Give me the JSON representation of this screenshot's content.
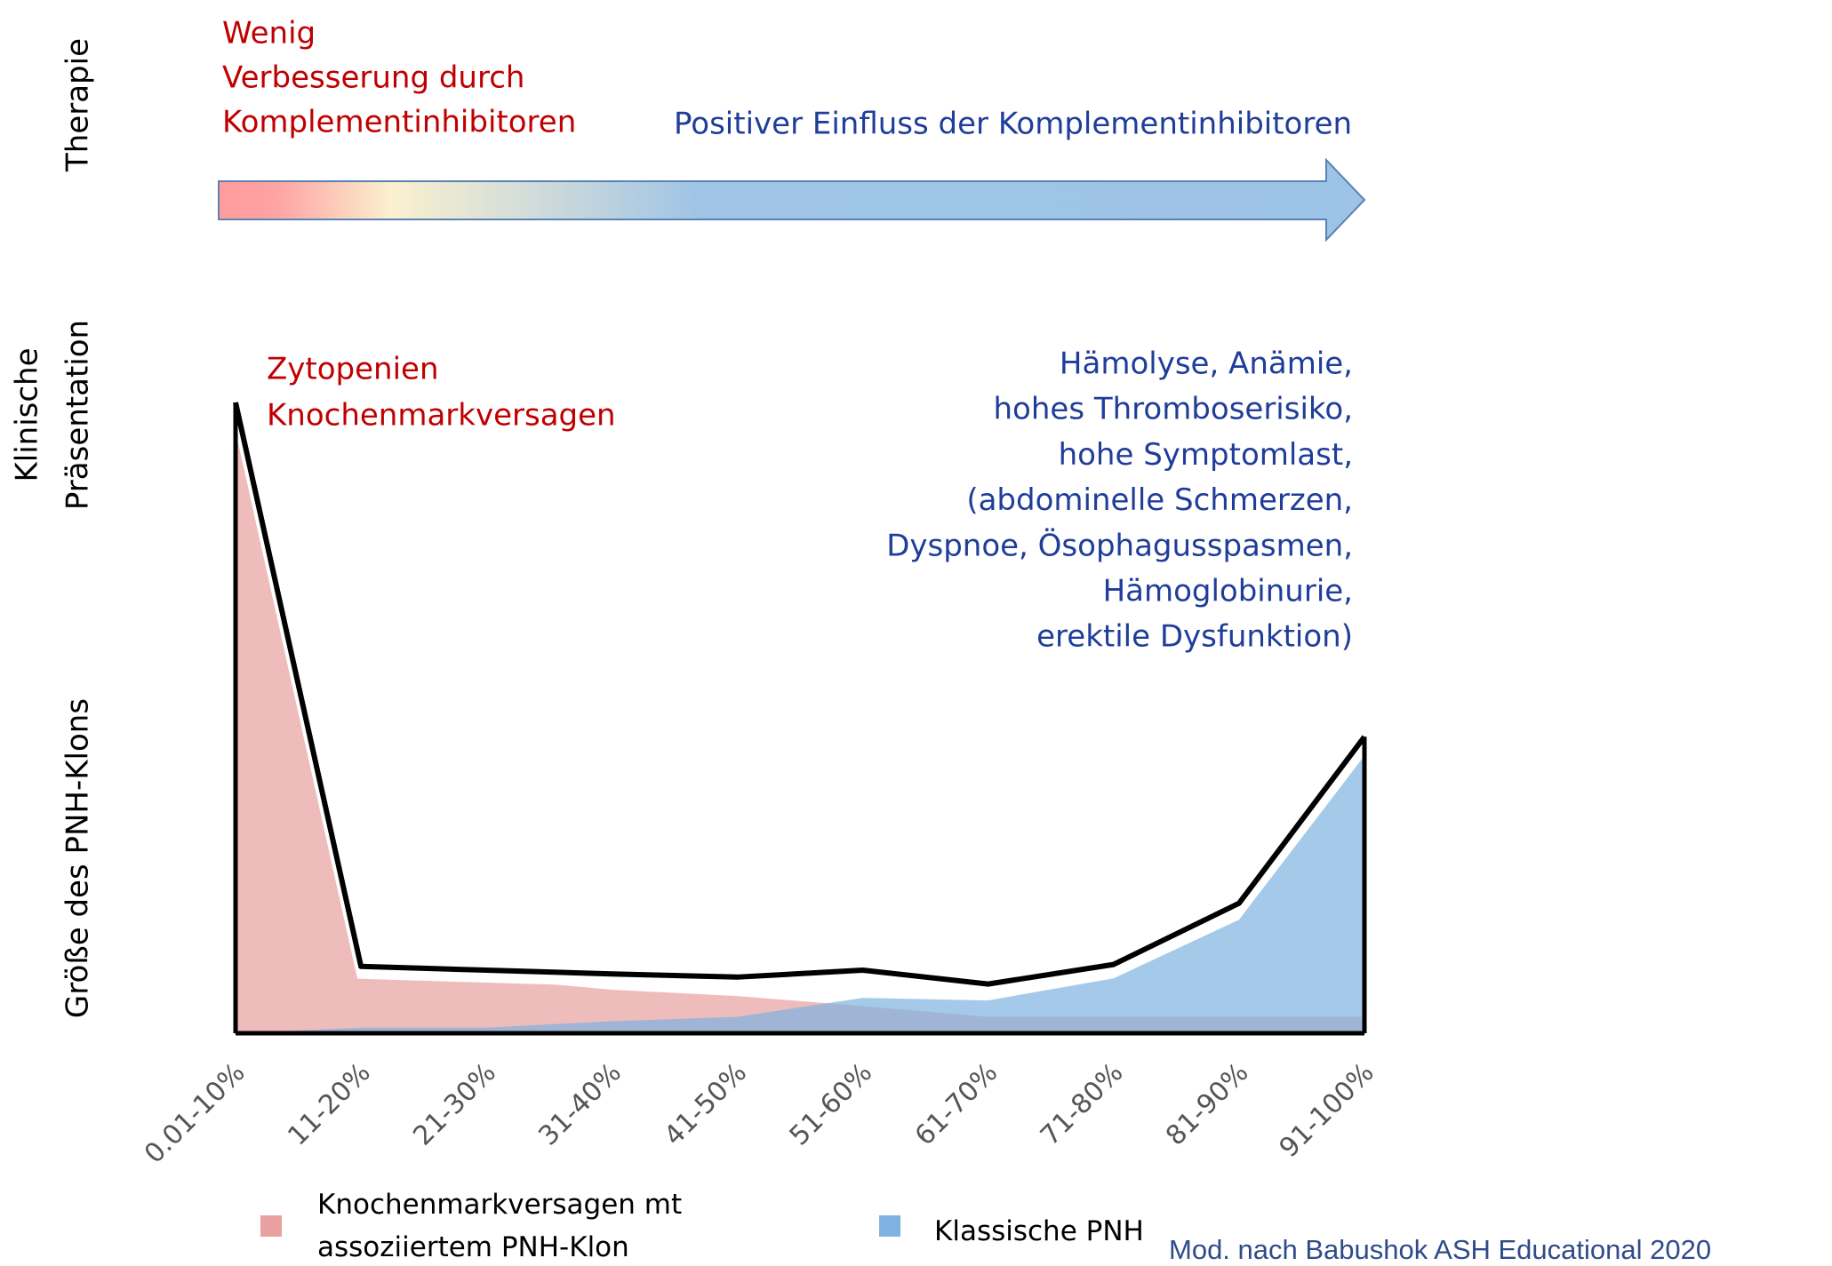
{
  "chart_data": {
    "type": "area",
    "y_label": "Größe des PNH-Klons",
    "row_labels": {
      "therapy": "Therapie",
      "clinical": [
        "Klinische",
        "Präsentation"
      ]
    },
    "therapy_annotations": [
      {
        "color": "#c00000",
        "lines": [
          "Wenig",
          "Verbesserung durch",
          "Komplementinhibitoren"
        ]
      },
      {
        "color": "#1f3d99",
        "lines": [
          "Positiver Einfluss der Komplementinhibitoren"
        ]
      }
    ],
    "clinical_annotations": [
      {
        "color": "#c00000",
        "lines": [
          "Zytopenien",
          "Knochenmarkversagen"
        ]
      },
      {
        "color": "#1f3d99",
        "lines": [
          "Hämolyse, Anämie,",
          "hohes Thromboserisiko,",
          "hohe Symptomlast,",
          "(abdominelle Schmerzen,",
          "Dyspnoe, Ösophagusspasmen,",
          "Hämoglobinurie,",
          "erektile Dysfunktion)"
        ]
      }
    ],
    "categories": [
      "0.01-10%",
      "11-20%",
      "21-30%",
      "31-40%",
      "41-50%",
      "51-60%",
      "61-70%",
      "71-80%",
      "81-90%",
      "91-100%"
    ],
    "series": [
      {
        "name": "Knochenmarkversagen mt assoziiertem PNH-Klon",
        "color": "#e8a0a0",
        "values": [
          99,
          9.6,
          8.7,
          6.9,
          5.9,
          4.3,
          2.6,
          2.6,
          2.6,
          2.6
        ]
      },
      {
        "name": "Klassische PNH",
        "color": "#7fb2e0",
        "values": [
          0,
          0.9,
          0.9,
          1.9,
          2.6,
          5.6,
          5.2,
          8.7,
          18,
          44
        ]
      }
    ],
    "outline": {
      "color": "#000000",
      "values": [
        100,
        10.6,
        10,
        9.4,
        8.9,
        10,
        7.8,
        10.9,
        20.6,
        47
      ]
    },
    "ylim": [
      0,
      100
    ],
    "source": "Mod. nach Babushok ASH Educational 2020"
  }
}
